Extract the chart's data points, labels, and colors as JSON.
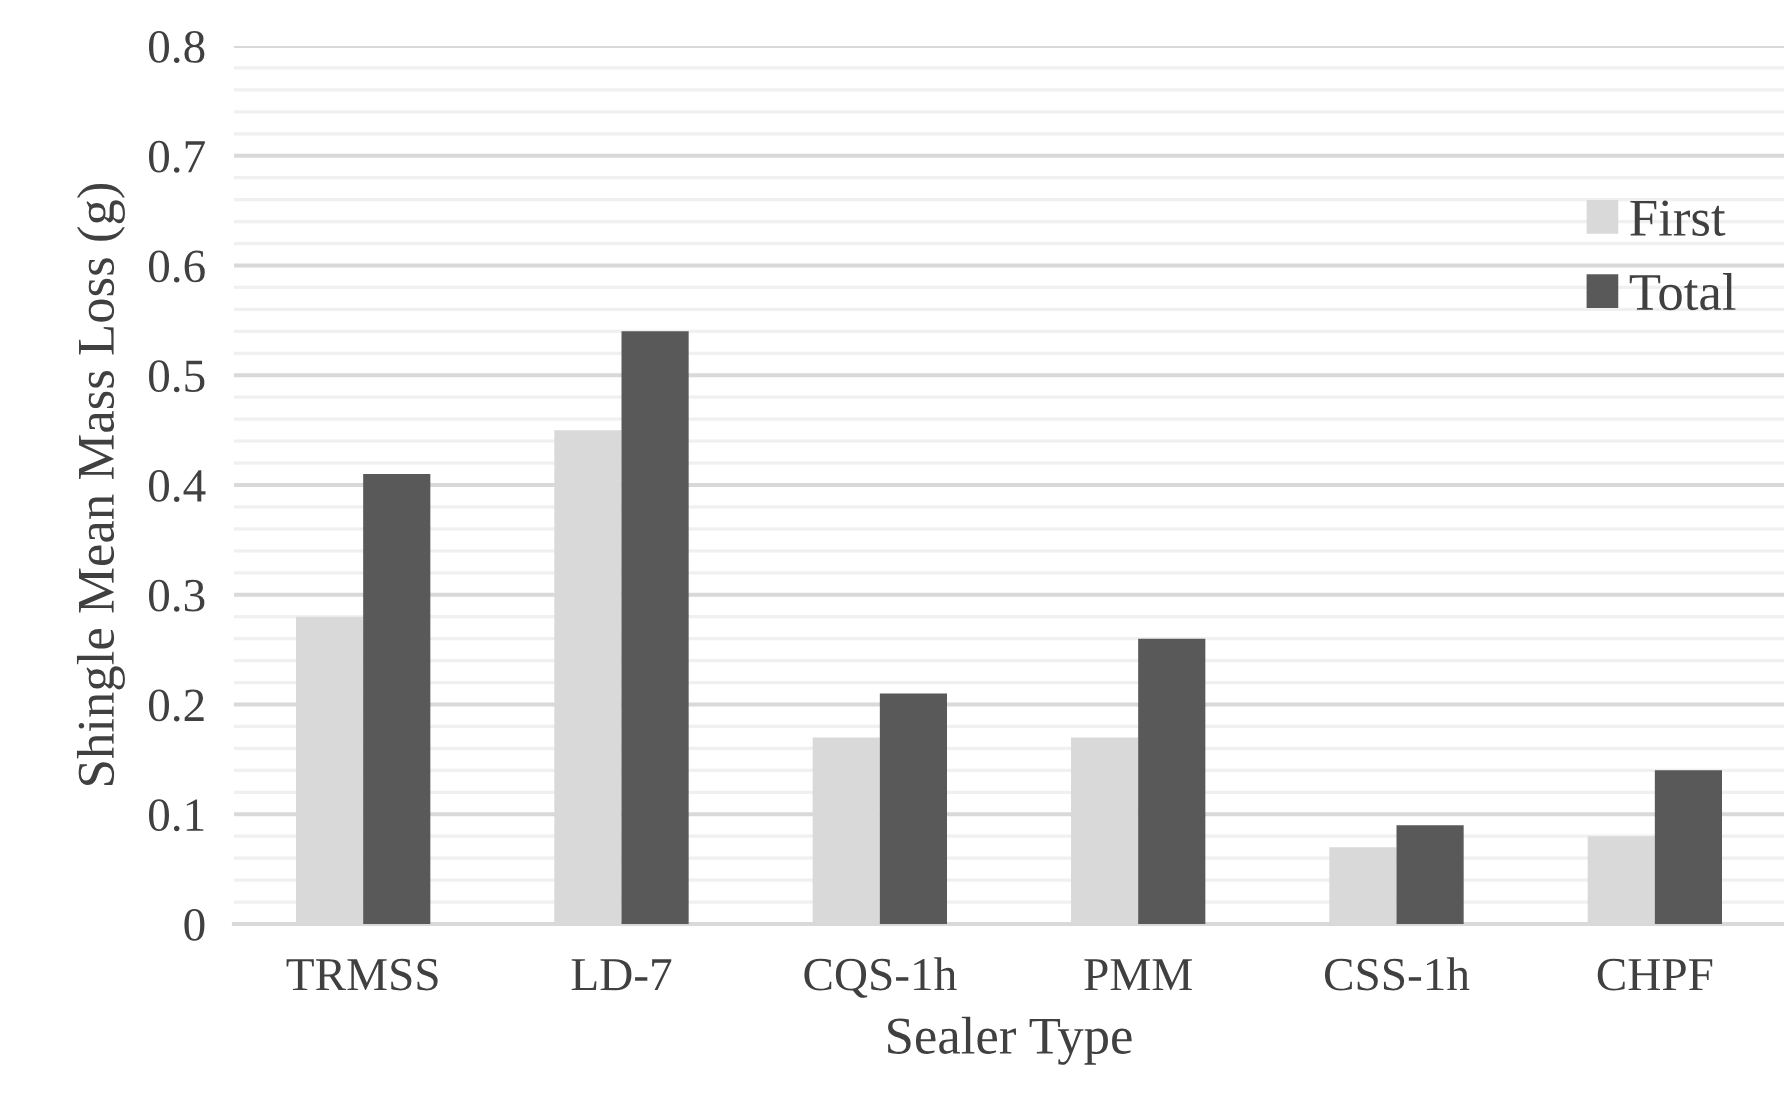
{
  "chart_data": {
    "type": "bar",
    "xlabel": "Sealer Type",
    "ylabel": "Shingle Mean Mass Loss (g)",
    "categories": [
      "TRMSS",
      "LD-7",
      "CQS-1h",
      "PMM",
      "CSS-1h",
      "CHPF"
    ],
    "series": [
      {
        "name": "First",
        "color": "#d9d9d9",
        "values": [
          0.28,
          0.45,
          0.17,
          0.17,
          0.07,
          0.08
        ]
      },
      {
        "name": "Total",
        "color": "#595959",
        "values": [
          0.41,
          0.54,
          0.21,
          0.26,
          0.09,
          0.14
        ]
      }
    ],
    "ylim": [
      0,
      0.8
    ],
    "yticks": [
      0,
      {
        "value": 0.02,
        "label": null
      },
      {
        "value": 0.04,
        "label": null
      },
      {
        "value": 0.06,
        "label": null
      },
      {
        "value": 0.08,
        "label": null
      },
      0.1,
      {
        "value": 0.12,
        "label": null
      },
      {
        "value": 0.14,
        "label": null
      },
      {
        "value": 0.16,
        "label": null
      },
      {
        "value": 0.18,
        "label": null
      },
      0.2,
      {
        "value": 0.22,
        "label": null
      },
      {
        "value": 0.24,
        "label": null
      },
      {
        "value": 0.26,
        "label": null
      },
      {
        "value": 0.28,
        "label": null
      },
      0.3,
      {
        "value": 0.32,
        "label": null
      },
      {
        "value": 0.34,
        "label": null
      },
      {
        "value": 0.36,
        "label": null
      },
      {
        "value": 0.38,
        "label": null
      },
      0.4,
      {
        "value": 0.42,
        "label": null
      },
      {
        "value": 0.44,
        "label": null
      },
      {
        "value": 0.46,
        "label": null
      },
      {
        "value": 0.48,
        "label": null
      },
      0.5,
      {
        "value": 0.52,
        "label": null
      },
      {
        "value": 0.54,
        "label": null
      },
      {
        "value": 0.56,
        "label": null
      },
      {
        "value": 0.58,
        "label": null
      },
      0.6,
      {
        "value": 0.62,
        "label": null
      },
      {
        "value": 0.64,
        "label": null
      },
      {
        "value": 0.66,
        "label": null
      },
      {
        "value": 0.68,
        "label": null
      },
      0.7,
      {
        "value": 0.72,
        "label": null
      },
      {
        "value": 0.74,
        "label": null
      },
      {
        "value": 0.76,
        "label": null
      },
      {
        "value": 0.78,
        "label": null
      },
      0.8
    ],
    "grid": "y",
    "legend": "top right"
  }
}
